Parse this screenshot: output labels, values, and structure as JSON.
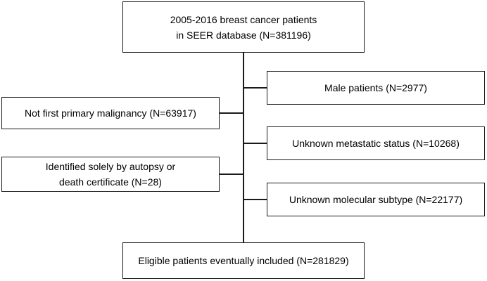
{
  "flowchart": {
    "top_box": {
      "line1": "2005-2016 breast cancer patients",
      "line2": "in SEER database (N=381196)"
    },
    "exclusions_right": {
      "male": "Male patients (N=2977)",
      "metastatic": "Unknown metastatic status (N=10268)",
      "subtype": "Unknown molecular subtype (N=22177)"
    },
    "exclusions_left": {
      "not_first": "Not first primary malignancy (N=63917)",
      "autopsy_line1": "Identified solely by autopsy or",
      "autopsy_line2": "death certificate (N=28)"
    },
    "bottom_box": {
      "label": "Eligible patients eventually included (N=281829)"
    }
  }
}
